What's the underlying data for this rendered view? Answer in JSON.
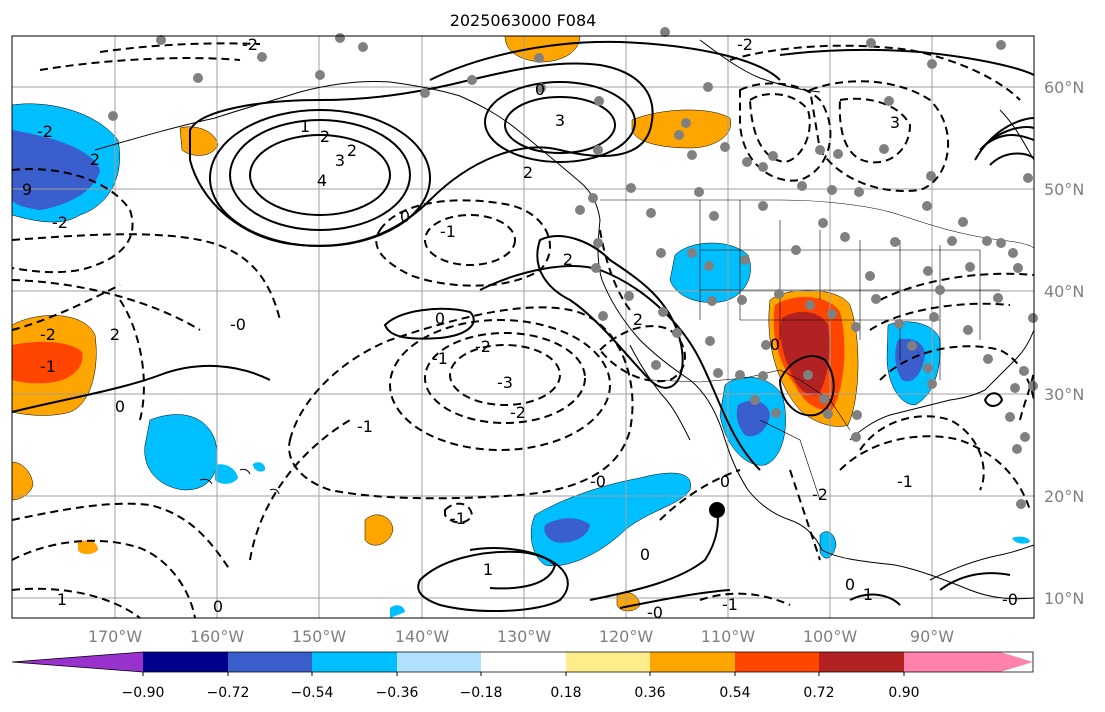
{
  "title": "2025063000 F084",
  "map": {
    "lon_labels": [
      "170°W",
      "160°W",
      "150°W",
      "140°W",
      "130°W",
      "120°W",
      "110°W",
      "100°W",
      "90°W"
    ],
    "lat_labels": [
      "60°N",
      "50°N",
      "40°N",
      "30°N",
      "20°N",
      "10°N"
    ],
    "gridline_color": "#a0a0a0",
    "contour_labels_solid": [
      "0",
      "1",
      "2",
      "3",
      "4",
      "2",
      "3",
      "0",
      "1",
      "2",
      "0",
      "0",
      "0",
      "1",
      "1",
      "0",
      "2",
      "3"
    ],
    "contour_labels_dashed": [
      "-2",
      "-2",
      "-1",
      "-2",
      "-2",
      "-1",
      "-0",
      "-1",
      "-2",
      "-3",
      "-2",
      "-1",
      "-1",
      "-0",
      "-0",
      "-1",
      "-2",
      "-1",
      "-0",
      "-1"
    ],
    "marker_colors": {
      "gray_station": "#808080",
      "black_marker": "#000000"
    }
  },
  "colorbar": {
    "tick_labels": [
      "−0.90",
      "−0.72",
      "−0.54",
      "−0.36",
      "−0.18",
      "0.18",
      "0.36",
      "0.54",
      "0.72",
      "0.90"
    ],
    "colors": [
      "#9932cc",
      "#00008b",
      "#3a5fcd",
      "#00bfff",
      "#b0e2ff",
      "#ffffff",
      "#ffec8b",
      "#ffa500",
      "#ff4500",
      "#b22222",
      "#ff82ab"
    ]
  }
}
